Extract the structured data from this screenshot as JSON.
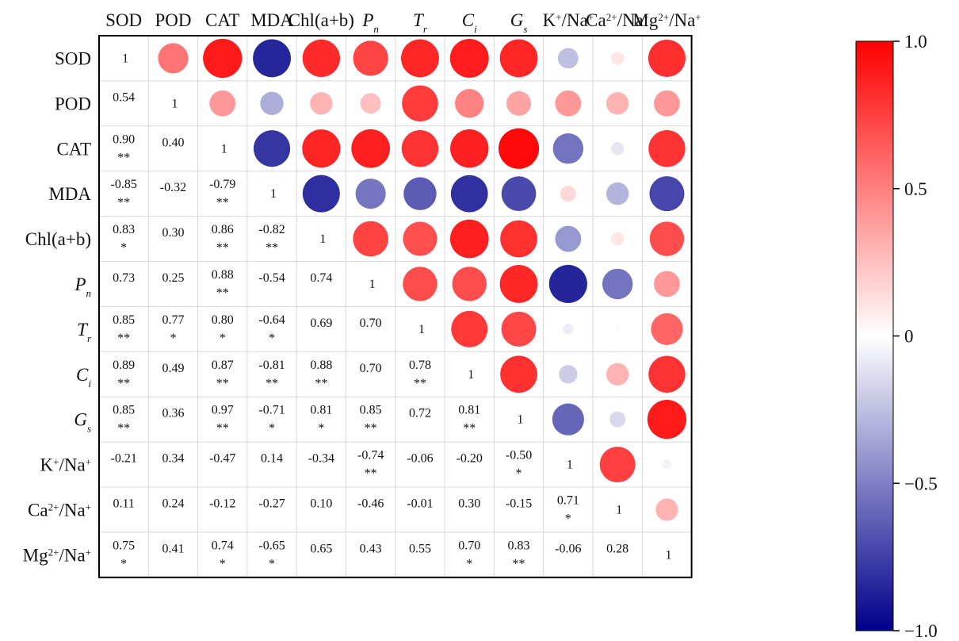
{
  "chart_data": {
    "type": "heatmap",
    "title": "",
    "variables": [
      {
        "base": "SOD",
        "sub": "",
        "sup": "",
        "italic": false
      },
      {
        "base": "POD",
        "sub": "",
        "sup": "",
        "italic": false
      },
      {
        "base": "CAT",
        "sub": "",
        "sup": "",
        "italic": false
      },
      {
        "base": "MDA",
        "sub": "",
        "sup": "",
        "italic": false
      },
      {
        "base": "Chl(a+b)",
        "sub": "",
        "sup": "",
        "italic": false
      },
      {
        "base": "P",
        "sub": "n",
        "sup": "",
        "italic": true
      },
      {
        "base": "T",
        "sub": "r",
        "sup": "",
        "italic": true
      },
      {
        "base": "C",
        "sub": "i",
        "sup": "",
        "italic": true
      },
      {
        "base": "G",
        "sub": "s",
        "sup": "",
        "italic": true
      },
      {
        "base": "K",
        "sup": "+",
        "tail": "/Na",
        "sup2": "+",
        "italic": false
      },
      {
        "base": "Ca",
        "sup": "2+",
        "tail": "/Na",
        "sup2": "+",
        "italic": false
      },
      {
        "base": "Mg",
        "sup": "2+",
        "tail": "/Na",
        "sup2": "+",
        "italic": false
      }
    ],
    "lower_triangle": [
      [],
      [
        {
          "v": "0.54",
          "sig": ""
        }
      ],
      [
        {
          "v": "0.90",
          "sig": "**"
        },
        {
          "v": "0.40",
          "sig": ""
        }
      ],
      [
        {
          "v": "-0.85",
          "sig": "**"
        },
        {
          "v": "-0.32",
          "sig": ""
        },
        {
          "v": "-0.79",
          "sig": "**"
        }
      ],
      [
        {
          "v": "0.83",
          "sig": "*"
        },
        {
          "v": "0.30",
          "sig": ""
        },
        {
          "v": "0.86",
          "sig": "**"
        },
        {
          "v": "-0.82",
          "sig": "**"
        }
      ],
      [
        {
          "v": "0.73",
          "sig": ""
        },
        {
          "v": "0.25",
          "sig": ""
        },
        {
          "v": "0.88",
          "sig": "**"
        },
        {
          "v": "-0.54",
          "sig": ""
        },
        {
          "v": "0.74",
          "sig": ""
        }
      ],
      [
        {
          "v": "0.85",
          "sig": "**"
        },
        {
          "v": "0.77",
          "sig": "*"
        },
        {
          "v": "0.80",
          "sig": "*"
        },
        {
          "v": "-0.64",
          "sig": "*"
        },
        {
          "v": "0.69",
          "sig": ""
        },
        {
          "v": "0.70",
          "sig": ""
        }
      ],
      [
        {
          "v": "0.89",
          "sig": "**"
        },
        {
          "v": "0.49",
          "sig": ""
        },
        {
          "v": "0.87",
          "sig": "**"
        },
        {
          "v": "-0.81",
          "sig": "**"
        },
        {
          "v": "0.88",
          "sig": "**"
        },
        {
          "v": "0.70",
          "sig": ""
        },
        {
          "v": "0.78",
          "sig": "**"
        }
      ],
      [
        {
          "v": "0.85",
          "sig": "**"
        },
        {
          "v": "0.36",
          "sig": ""
        },
        {
          "v": "0.97",
          "sig": "**"
        },
        {
          "v": "-0.71",
          "sig": "*"
        },
        {
          "v": "0.81",
          "sig": "*"
        },
        {
          "v": "0.85",
          "sig": "**"
        },
        {
          "v": "0.72",
          "sig": ""
        },
        {
          "v": "0.81",
          "sig": "**"
        }
      ],
      [
        {
          "v": "-0.21",
          "sig": ""
        },
        {
          "v": "0.34",
          "sig": ""
        },
        {
          "v": "-0.47",
          "sig": ""
        },
        {
          "v": "0.14",
          "sig": ""
        },
        {
          "v": "-0.34",
          "sig": ""
        },
        {
          "v": "-0.74",
          "sig": "**"
        },
        {
          "v": "-0.06",
          "sig": ""
        },
        {
          "v": "-0.20",
          "sig": ""
        },
        {
          "v": "-0.50",
          "sig": "*"
        }
      ],
      [
        {
          "v": "0.11",
          "sig": ""
        },
        {
          "v": "0.24",
          "sig": ""
        },
        {
          "v": "-0.12",
          "sig": ""
        },
        {
          "v": "-0.27",
          "sig": ""
        },
        {
          "v": "0.10",
          "sig": ""
        },
        {
          "v": "-0.46",
          "sig": ""
        },
        {
          "v": "-0.01",
          "sig": ""
        },
        {
          "v": "0.30",
          "sig": ""
        },
        {
          "v": "-0.15",
          "sig": ""
        },
        {
          "v": "0.71",
          "sig": "*"
        }
      ],
      [
        {
          "v": "0.75",
          "sig": "*"
        },
        {
          "v": "0.41",
          "sig": ""
        },
        {
          "v": "0.74",
          "sig": "*"
        },
        {
          "v": "-0.65",
          "sig": "*"
        },
        {
          "v": "0.65",
          "sig": ""
        },
        {
          "v": "0.43",
          "sig": ""
        },
        {
          "v": "0.55",
          "sig": ""
        },
        {
          "v": "0.70",
          "sig": "*"
        },
        {
          "v": "0.83",
          "sig": "**"
        },
        {
          "v": "-0.06",
          "sig": ""
        },
        {
          "v": "0.28",
          "sig": ""
        }
      ]
    ],
    "upper_extra": [
      {
        "row": 0,
        "col": 9,
        "value": -0.25
      },
      {
        "row": 0,
        "col": 10,
        "value": 0.1
      },
      {
        "row": 0,
        "col": 11,
        "value": 0.82
      },
      {
        "row": 1,
        "col": 9,
        "value": 0.4
      },
      {
        "row": 1,
        "col": 10,
        "value": 0.3
      },
      {
        "row": 1,
        "col": 11,
        "value": 0.4
      },
      {
        "row": 2,
        "col": 9,
        "value": -0.55
      },
      {
        "row": 2,
        "col": 10,
        "value": -0.1
      },
      {
        "row": 2,
        "col": 11,
        "value": 0.8
      },
      {
        "row": 3,
        "col": 9,
        "value": 0.15
      },
      {
        "row": 3,
        "col": 10,
        "value": -0.3
      },
      {
        "row": 3,
        "col": 11,
        "value": -0.72
      },
      {
        "row": 4,
        "col": 9,
        "value": -0.4
      },
      {
        "row": 4,
        "col": 10,
        "value": 0.1
      },
      {
        "row": 4,
        "col": 11,
        "value": 0.7
      },
      {
        "row": 5,
        "col": 9,
        "value": -0.86
      },
      {
        "row": 5,
        "col": 10,
        "value": -0.55
      },
      {
        "row": 5,
        "col": 11,
        "value": 0.4
      },
      {
        "row": 6,
        "col": 9,
        "value": -0.07
      },
      {
        "row": 6,
        "col": 10,
        "value": -0.02
      },
      {
        "row": 6,
        "col": 11,
        "value": 0.6
      },
      {
        "row": 7,
        "col": 9,
        "value": -0.2
      },
      {
        "row": 7,
        "col": 10,
        "value": 0.3
      },
      {
        "row": 7,
        "col": 11,
        "value": 0.8
      },
      {
        "row": 8,
        "col": 9,
        "value": -0.6
      },
      {
        "row": 8,
        "col": 10,
        "value": -0.15
      },
      {
        "row": 8,
        "col": 11,
        "value": 0.9
      },
      {
        "row": 9,
        "col": 10,
        "value": 0.75
      },
      {
        "row": 9,
        "col": 11,
        "value": -0.05
      },
      {
        "row": 10,
        "col": 11,
        "value": 0.3
      }
    ],
    "colorbar": {
      "ticks": [
        "1.0",
        "0.5",
        "0",
        "−0.5",
        "−1.0"
      ],
      "min": -1.0,
      "max": 1.0
    },
    "colors": {
      "positive": "#ff0000",
      "negative": "#00008b",
      "neutral": "#ffffff"
    }
  }
}
